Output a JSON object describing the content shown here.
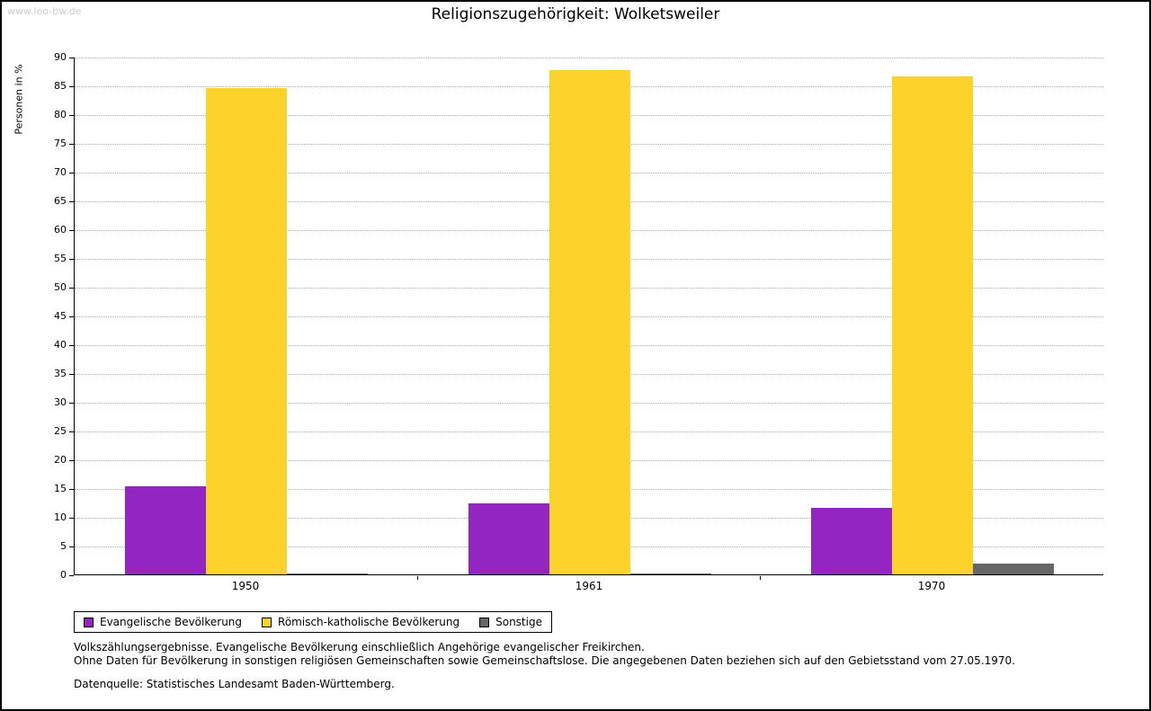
{
  "watermark": "www.leo-bw.de",
  "title": "Religionszugehörigkeit: Wolketsweiler",
  "chart_data": {
    "type": "bar",
    "title": "Religionszugehörigkeit: Wolketsweiler",
    "categories": [
      "1950",
      "1961",
      "1970"
    ],
    "series": [
      {
        "name": "Evangelische Bevölkerung",
        "color": "#9326c3",
        "values": [
          15.3,
          12.4,
          11.5
        ]
      },
      {
        "name": "Römisch-katholische Bevölkerung",
        "color": "#fcd32b",
        "values": [
          84.6,
          87.7,
          86.6
        ]
      },
      {
        "name": "Sonstige",
        "color": "#666666",
        "values": [
          0.2,
          0.1,
          1.9
        ]
      }
    ],
    "xlabel": "",
    "ylabel": "Personen in %",
    "ylim": [
      0,
      90
    ],
    "ytick_step": 5,
    "grid": "horizontal-dotted",
    "legend_position": "bottom-left"
  },
  "footnotes": {
    "line1": "Volkszählungsergebnisse. Evangelische Bevölkerung einschließlich Angehörige evangelischer Freikirchen.",
    "line2": "Ohne Daten für Bevölkerung in sonstigen religiösen Gemeinschaften sowie Gemeinschaftslose. Die angegebenen Daten beziehen sich auf den Gebietsstand vom 27.05.1970.",
    "source": "Datenquelle: Statistisches Landesamt Baden-Württemberg."
  }
}
